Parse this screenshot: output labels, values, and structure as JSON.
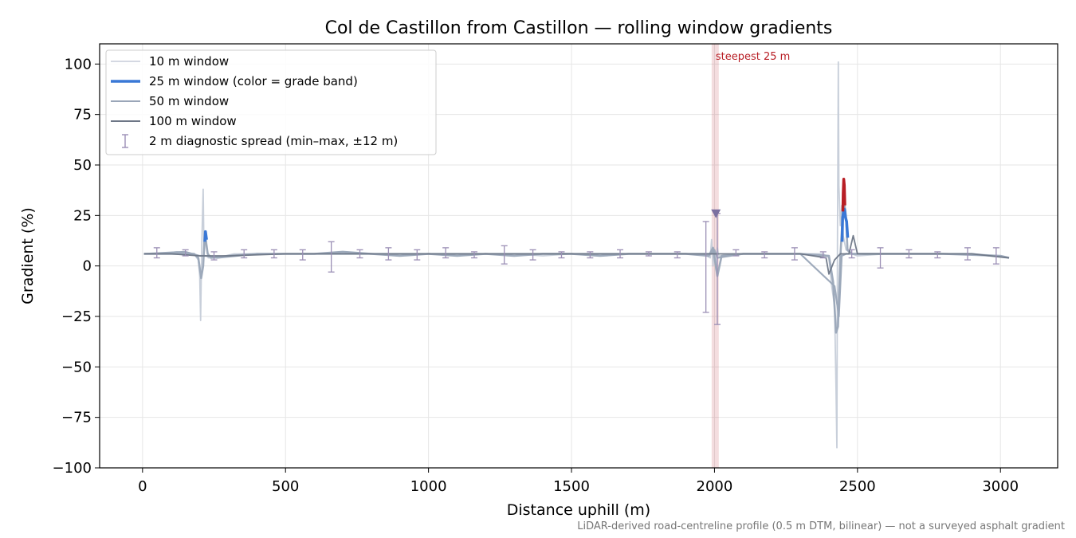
{
  "chart_data": {
    "type": "line",
    "title": "Col de Castillon from Castillon — rolling window gradients",
    "xlabel": "Distance uphill (m)",
    "ylabel": "Gradient (%)",
    "footnote": "LiDAR-derived road-centreline profile (0.5 m DTM, bilinear) — not a surveyed asphalt gradient",
    "xlim": [
      -150,
      3200
    ],
    "ylim": [
      -100,
      110
    ],
    "xticks": [
      0,
      500,
      1000,
      1500,
      2000,
      2500,
      3000
    ],
    "yticks": [
      100,
      75,
      50,
      25,
      0,
      -25,
      -50,
      -75,
      -100
    ],
    "grid": true,
    "legend_position": "top-left",
    "legend": [
      {
        "label": "10 m window",
        "color": "#c5ccd8"
      },
      {
        "label": "25 m window (color = grade band)",
        "color": "#3a78d6"
      },
      {
        "label": "50 m window",
        "color": "#9aa6b8"
      },
      {
        "label": "100 m window",
        "color": "#6d7686"
      },
      {
        "label": "2 m diagnostic spread (min–max, ±12 m)",
        "color": "#9b8fb5"
      }
    ],
    "series": [
      {
        "name": "10 m window",
        "color": "#c5ccd8",
        "x": [
          5,
          60,
          120,
          180,
          195,
          200,
          203,
          207,
          212,
          215,
          220,
          230,
          260,
          320,
          400,
          500,
          600,
          700,
          800,
          900,
          1000,
          1100,
          1200,
          1300,
          1400,
          1500,
          1600,
          1700,
          1800,
          1900,
          1960,
          1985,
          1990,
          1995,
          2000,
          2005,
          2010,
          2015,
          2030,
          2100,
          2200,
          2300,
          2380,
          2400,
          2410,
          2420,
          2425,
          2428,
          2430,
          2433,
          2435,
          2440,
          2445,
          2450,
          2460,
          2480,
          2500,
          2600,
          2700,
          2800,
          2900,
          3000,
          3030
        ],
        "y": [
          6,
          6,
          7,
          6,
          3,
          -5,
          -27,
          10,
          38,
          5,
          14,
          4,
          4,
          6,
          6,
          6,
          6,
          7,
          6,
          5,
          6,
          5,
          6,
          6,
          5,
          6,
          5,
          6,
          6,
          6,
          6,
          4,
          13,
          0,
          8,
          -2,
          9,
          5,
          5,
          6,
          6,
          6,
          6,
          4,
          -10,
          -20,
          -60,
          -90,
          10,
          101,
          40,
          20,
          30,
          15,
          8,
          6,
          5,
          6,
          6,
          6,
          6,
          5,
          4
        ]
      },
      {
        "name": "25 m window (color = grade band)",
        "color": "#9aa6b8",
        "x": [
          5,
          100,
          180,
          195,
          205,
          212,
          218,
          222,
          228,
          240,
          300,
          400,
          500,
          600,
          700,
          800,
          900,
          1000,
          1100,
          1200,
          1300,
          1400,
          1500,
          1600,
          1700,
          1800,
          1900,
          1980,
          1995,
          2010,
          2025,
          2100,
          2200,
          2300,
          2400,
          2415,
          2425,
          2432,
          2440,
          2447,
          2452,
          2455,
          2460,
          2465,
          2480,
          2600,
          2800,
          3000,
          3030
        ],
        "y": [
          6,
          6,
          6,
          4,
          -6,
          0,
          17,
          12,
          6,
          4,
          5,
          6,
          6,
          6,
          7,
          6,
          5,
          6,
          5,
          6,
          5,
          6,
          6,
          5,
          6,
          6,
          6,
          5,
          9,
          -5,
          5,
          6,
          6,
          6,
          5,
          -8,
          -33,
          -30,
          4,
          22,
          43,
          30,
          24,
          8,
          6,
          6,
          6,
          5,
          4
        ]
      },
      {
        "name": "50 m window",
        "color": "#9aa6b8",
        "x": [
          5,
          150,
          200,
          220,
          260,
          400,
          600,
          800,
          1000,
          1200,
          1400,
          1600,
          1800,
          1990,
          2000,
          2010,
          2100,
          2300,
          2420,
          2435,
          2445,
          2460,
          2500,
          2700,
          2900,
          3030
        ],
        "y": [
          6,
          7,
          5,
          5,
          4,
          6,
          6,
          6,
          6,
          6,
          6,
          6,
          6,
          6,
          8,
          4,
          6,
          6,
          -10,
          -25,
          5,
          6,
          6,
          6,
          6,
          4
        ]
      },
      {
        "name": "100 m window",
        "color": "#6d7686",
        "x": [
          5,
          100,
          200,
          300,
          500,
          700,
          900,
          1100,
          1300,
          1500,
          1700,
          1900,
          2000,
          2100,
          2300,
          2390,
          2400,
          2420,
          2440,
          2470,
          2485,
          2500,
          2700,
          2900,
          3030
        ],
        "y": [
          6,
          6,
          5,
          5,
          6,
          6,
          6,
          6,
          6,
          6,
          6,
          6,
          6,
          6,
          6,
          4,
          -4,
          3,
          6,
          6,
          15,
          6,
          6,
          6,
          4
        ]
      }
    ],
    "grade_band_highlights": [
      {
        "color": "#3a78d6",
        "x": [
          218,
          220,
          222,
          224
        ],
        "y": [
          12,
          17,
          15,
          13
        ]
      },
      {
        "color": "#3a78d6",
        "x": [
          2446,
          2448,
          2452,
          2455,
          2458,
          2462,
          2466
        ],
        "y": [
          12,
          24,
          27,
          28,
          24,
          22,
          14
        ]
      },
      {
        "color": "#b81e25",
        "x": [
          2449,
          2450,
          2452,
          2454,
          2456
        ],
        "y": [
          27,
          36,
          43,
          40,
          30
        ]
      }
    ],
    "steepest_25m": {
      "label": "steepest 25 m",
      "x_start": 1990,
      "x_end": 2015,
      "marker_x": 2005,
      "marker_y": 26,
      "color": "#b81e25"
    },
    "diagnostic_spread": [
      {
        "x": 50,
        "min": 4,
        "max": 9
      },
      {
        "x": 150,
        "min": 5,
        "max": 8
      },
      {
        "x": 250,
        "min": 3,
        "max": 7
      },
      {
        "x": 355,
        "min": 4,
        "max": 8
      },
      {
        "x": 460,
        "min": 4,
        "max": 8
      },
      {
        "x": 560,
        "min": 3,
        "max": 8
      },
      {
        "x": 660,
        "min": -3,
        "max": 12
      },
      {
        "x": 760,
        "min": 4,
        "max": 8
      },
      {
        "x": 860,
        "min": 3,
        "max": 9
      },
      {
        "x": 960,
        "min": 3,
        "max": 8
      },
      {
        "x": 1060,
        "min": 4,
        "max": 9
      },
      {
        "x": 1160,
        "min": 4,
        "max": 7
      },
      {
        "x": 1265,
        "min": 1,
        "max": 10
      },
      {
        "x": 1365,
        "min": 3,
        "max": 8
      },
      {
        "x": 1465,
        "min": 4,
        "max": 7
      },
      {
        "x": 1565,
        "min": 4,
        "max": 7
      },
      {
        "x": 1670,
        "min": 4,
        "max": 8
      },
      {
        "x": 1770,
        "min": 5,
        "max": 7
      },
      {
        "x": 1870,
        "min": 4,
        "max": 7
      },
      {
        "x": 1970,
        "min": -23,
        "max": 22
      },
      {
        "x": 2010,
        "min": -29,
        "max": 26
      },
      {
        "x": 2075,
        "min": 5,
        "max": 8
      },
      {
        "x": 2175,
        "min": 4,
        "max": 7
      },
      {
        "x": 2280,
        "min": 3,
        "max": 9
      },
      {
        "x": 2380,
        "min": 4,
        "max": 7
      },
      {
        "x": 2480,
        "min": 4,
        "max": 8
      },
      {
        "x": 2580,
        "min": -1,
        "max": 9
      },
      {
        "x": 2680,
        "min": 4,
        "max": 8
      },
      {
        "x": 2780,
        "min": 4,
        "max": 7
      },
      {
        "x": 2885,
        "min": 3,
        "max": 9
      },
      {
        "x": 2985,
        "min": 1,
        "max": 9
      }
    ]
  }
}
